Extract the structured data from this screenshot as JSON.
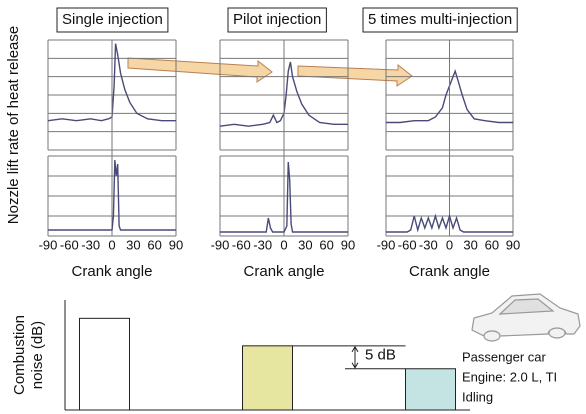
{
  "ylabel": "Nozzle lift rate of heat release",
  "chart_data": [
    {
      "type": "line",
      "title": "Single injection",
      "xlim": [
        -90,
        90
      ],
      "ylim": [
        0,
        6
      ],
      "yticks": [
        0,
        1,
        2,
        3,
        4,
        5,
        6
      ],
      "x": [
        -90,
        -70,
        -50,
        -30,
        -15,
        -5,
        0,
        3,
        5,
        8,
        12,
        18,
        25,
        35,
        50,
        70,
        90
      ],
      "series": [
        {
          "color": "#4a4a7a",
          "values": [
            1.6,
            1.7,
            1.6,
            1.7,
            1.6,
            1.7,
            1.8,
            3.5,
            5.8,
            5.2,
            4.2,
            3.3,
            2.6,
            2.0,
            1.7,
            1.6,
            1.6
          ]
        }
      ]
    },
    {
      "type": "line",
      "xlabel": "Crank angle",
      "xlim": [
        -90,
        90
      ],
      "xticks": [
        -90,
        -60,
        -30,
        0,
        30,
        60,
        90
      ],
      "ylim": [
        0,
        4
      ],
      "yticks": [
        0,
        1,
        2,
        3,
        4
      ],
      "x": [
        -90,
        -30,
        0,
        2,
        4,
        6,
        8,
        10,
        12,
        30,
        90
      ],
      "series": [
        {
          "color": "#4a4a7a",
          "values": [
            0.3,
            0.3,
            0.3,
            1.0,
            3.8,
            3.0,
            3.6,
            0.5,
            0.3,
            0.3,
            0.3
          ]
        }
      ]
    },
    {
      "type": "line",
      "title": "Pilot injection",
      "xlim": [
        -90,
        90
      ],
      "ylim": [
        0,
        6
      ],
      "yticks": [
        0,
        1,
        2,
        3,
        4,
        5,
        6
      ],
      "x": [
        -90,
        -70,
        -50,
        -30,
        -20,
        -15,
        -10,
        -5,
        0,
        3,
        6,
        9,
        12,
        18,
        25,
        35,
        50,
        70,
        90
      ],
      "series": [
        {
          "color": "#4a4a7a",
          "values": [
            1.3,
            1.4,
            1.3,
            1.4,
            1.5,
            1.9,
            1.5,
            1.6,
            2.0,
            3.0,
            4.3,
            4.8,
            4.0,
            3.2,
            2.5,
            1.9,
            1.5,
            1.4,
            1.4
          ]
        }
      ]
    },
    {
      "type": "line",
      "xlabel": "Crank angle",
      "xlim": [
        -90,
        90
      ],
      "xticks": [
        -90,
        -60,
        -30,
        0,
        30,
        60,
        90
      ],
      "ylim": [
        0,
        4
      ],
      "yticks": [
        0,
        1,
        2,
        3,
        4
      ],
      "x": [
        -90,
        -40,
        -25,
        -22,
        -19,
        -16,
        0,
        4,
        6,
        8,
        10,
        12,
        30,
        90
      ],
      "series": [
        {
          "color": "#4a4a7a",
          "values": [
            0.2,
            0.2,
            0.2,
            0.9,
            0.4,
            0.2,
            0.2,
            0.5,
            3.7,
            2.8,
            0.6,
            0.2,
            0.2,
            0.2
          ]
        }
      ]
    },
    {
      "type": "line",
      "title": "5 times multi-injection",
      "xlim": [
        -90,
        90
      ],
      "ylim": [
        0,
        6
      ],
      "yticks": [
        0,
        1,
        2,
        3,
        4,
        5,
        6
      ],
      "x": [
        -90,
        -70,
        -50,
        -30,
        -20,
        -10,
        -5,
        0,
        5,
        8,
        12,
        18,
        25,
        35,
        50,
        70,
        90
      ],
      "series": [
        {
          "color": "#4a4a7a",
          "values": [
            1.5,
            1.5,
            1.6,
            1.6,
            1.8,
            2.3,
            3.0,
            3.5,
            4.0,
            4.3,
            3.8,
            3.0,
            2.2,
            1.7,
            1.6,
            1.5,
            1.5
          ]
        }
      ]
    },
    {
      "type": "line",
      "xlabel": "Crank angle",
      "xlim": [
        -90,
        90
      ],
      "xticks": [
        -90,
        -60,
        -30,
        0,
        30,
        60,
        90
      ],
      "ylim": [
        0,
        4
      ],
      "yticks": [
        0,
        1,
        2,
        3,
        4
      ],
      "x": [
        -90,
        -60,
        -55,
        -50,
        -45,
        -40,
        -35,
        -30,
        -25,
        -20,
        -15,
        -10,
        -5,
        0,
        5,
        10,
        15,
        20,
        40,
        90
      ],
      "series": [
        {
          "color": "#4a4a7a",
          "values": [
            0.2,
            0.2,
            0.3,
            1.0,
            0.3,
            0.9,
            0.4,
            0.9,
            0.4,
            1.0,
            0.4,
            0.9,
            0.4,
            1.0,
            0.4,
            0.9,
            0.3,
            0.2,
            0.2,
            0.2
          ]
        }
      ]
    },
    {
      "type": "bar",
      "ylabel": [
        "Combustion",
        "noise (dB)"
      ],
      "categories": [
        null,
        null,
        null
      ],
      "values": [
        20,
        14,
        9
      ],
      "colors": [
        "#ffffff",
        "#e6e6a0",
        "#c4e4e4"
      ],
      "ylim": [
        0,
        24
      ],
      "annotation": "5 dB",
      "notes": [
        "Passenger car",
        "Engine: 2.0 L, TI",
        "Idling"
      ]
    }
  ]
}
